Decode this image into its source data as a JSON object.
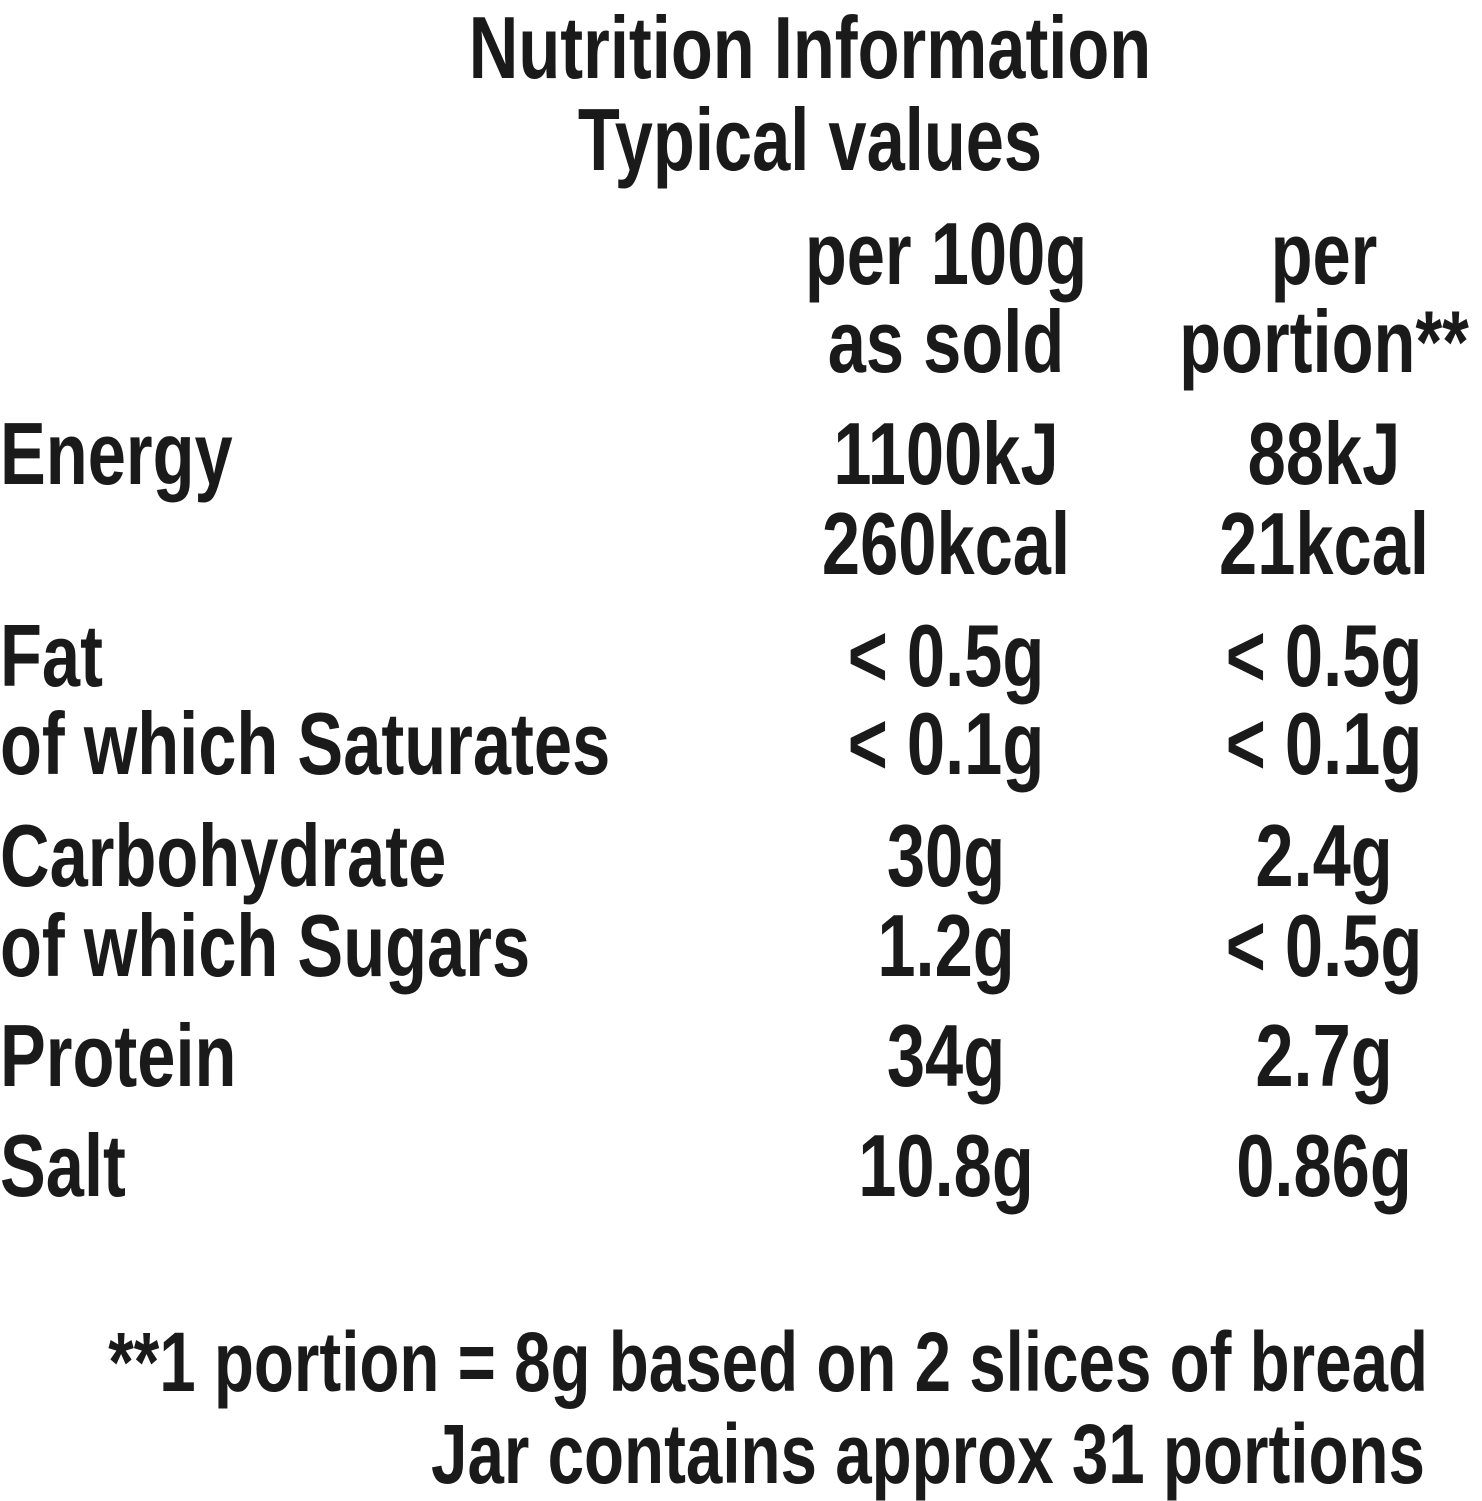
{
  "title": "Nutrition Information",
  "subtitle": "Typical values",
  "columns": {
    "per_100g": [
      "per 100g",
      "as sold"
    ],
    "per_portion": [
      "per",
      "portion**"
    ]
  },
  "rows": [
    {
      "label": "Energy",
      "per_100g": "1100kJ",
      "per_portion": "88kJ"
    },
    {
      "label": "",
      "per_100g": "260kcal",
      "per_portion": "21kcal"
    },
    {
      "label": "Fat",
      "per_100g": "< 0.5g",
      "per_portion": "< 0.5g"
    },
    {
      "label": "of which Saturates",
      "per_100g": "< 0.1g",
      "per_portion": "< 0.1g"
    },
    {
      "label": "Carbohydrate",
      "per_100g": "30g",
      "per_portion": "2.4g"
    },
    {
      "label": "of which Sugars",
      "per_100g": "1.2g",
      "per_portion": "< 0.5g"
    },
    {
      "label": "Protein",
      "per_100g": "34g",
      "per_portion": "2.7g"
    },
    {
      "label": "Salt",
      "per_100g": "10.8g",
      "per_portion": "0.86g"
    }
  ],
  "footnote": {
    "line1": "**1 portion = 8g based on 2 slices of bread",
    "line2": "Jar contains approx 31 portions"
  }
}
